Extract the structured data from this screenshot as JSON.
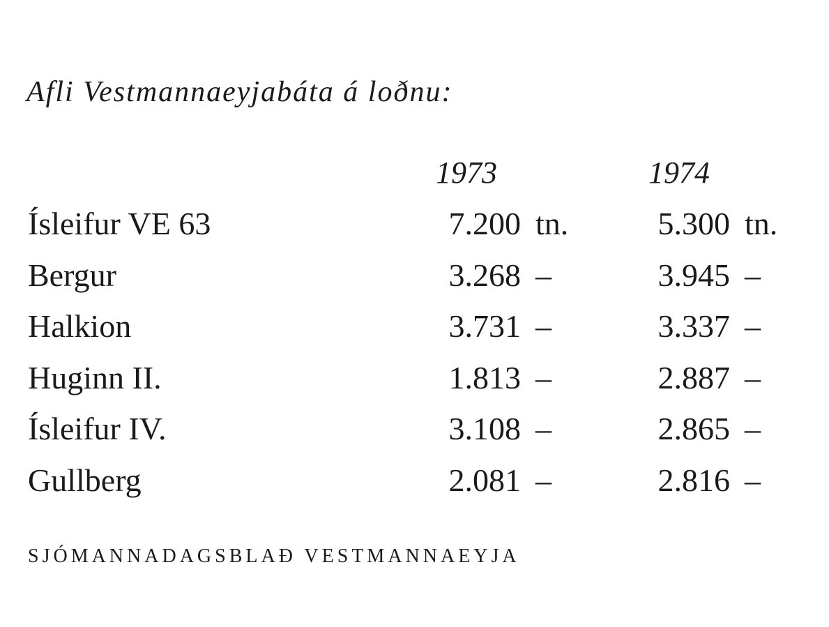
{
  "title": "Afli Vestmannaeyjabáta á loðnu:",
  "columns": [
    "1973",
    "1974"
  ],
  "rows": [
    {
      "name": "Ísleifur VE 63",
      "v1973": "7.200",
      "u1973": "tn.",
      "v1974": "5.300",
      "u1974": "tn."
    },
    {
      "name": "Bergur",
      "v1973": "3.268",
      "u1973": "–",
      "v1974": "3.945",
      "u1974": "–"
    },
    {
      "name": "Halkion",
      "v1973": "3.731",
      "u1973": "–",
      "v1974": "3.337",
      "u1974": "–"
    },
    {
      "name": "Huginn II.",
      "v1973": "1.813",
      "u1973": "–",
      "v1974": "2.887",
      "u1974": "–"
    },
    {
      "name": "Ísleifur IV.",
      "v1973": "3.108",
      "u1973": "–",
      "v1974": "2.865",
      "u1974": "–"
    },
    {
      "name": "Gullberg",
      "v1973": "2.081",
      "u1973": "–",
      "v1974": "2.816",
      "u1974": "–"
    }
  ],
  "footer": "SJÓMANNADAGSBLAÐ VESTMANNAEYJA"
}
